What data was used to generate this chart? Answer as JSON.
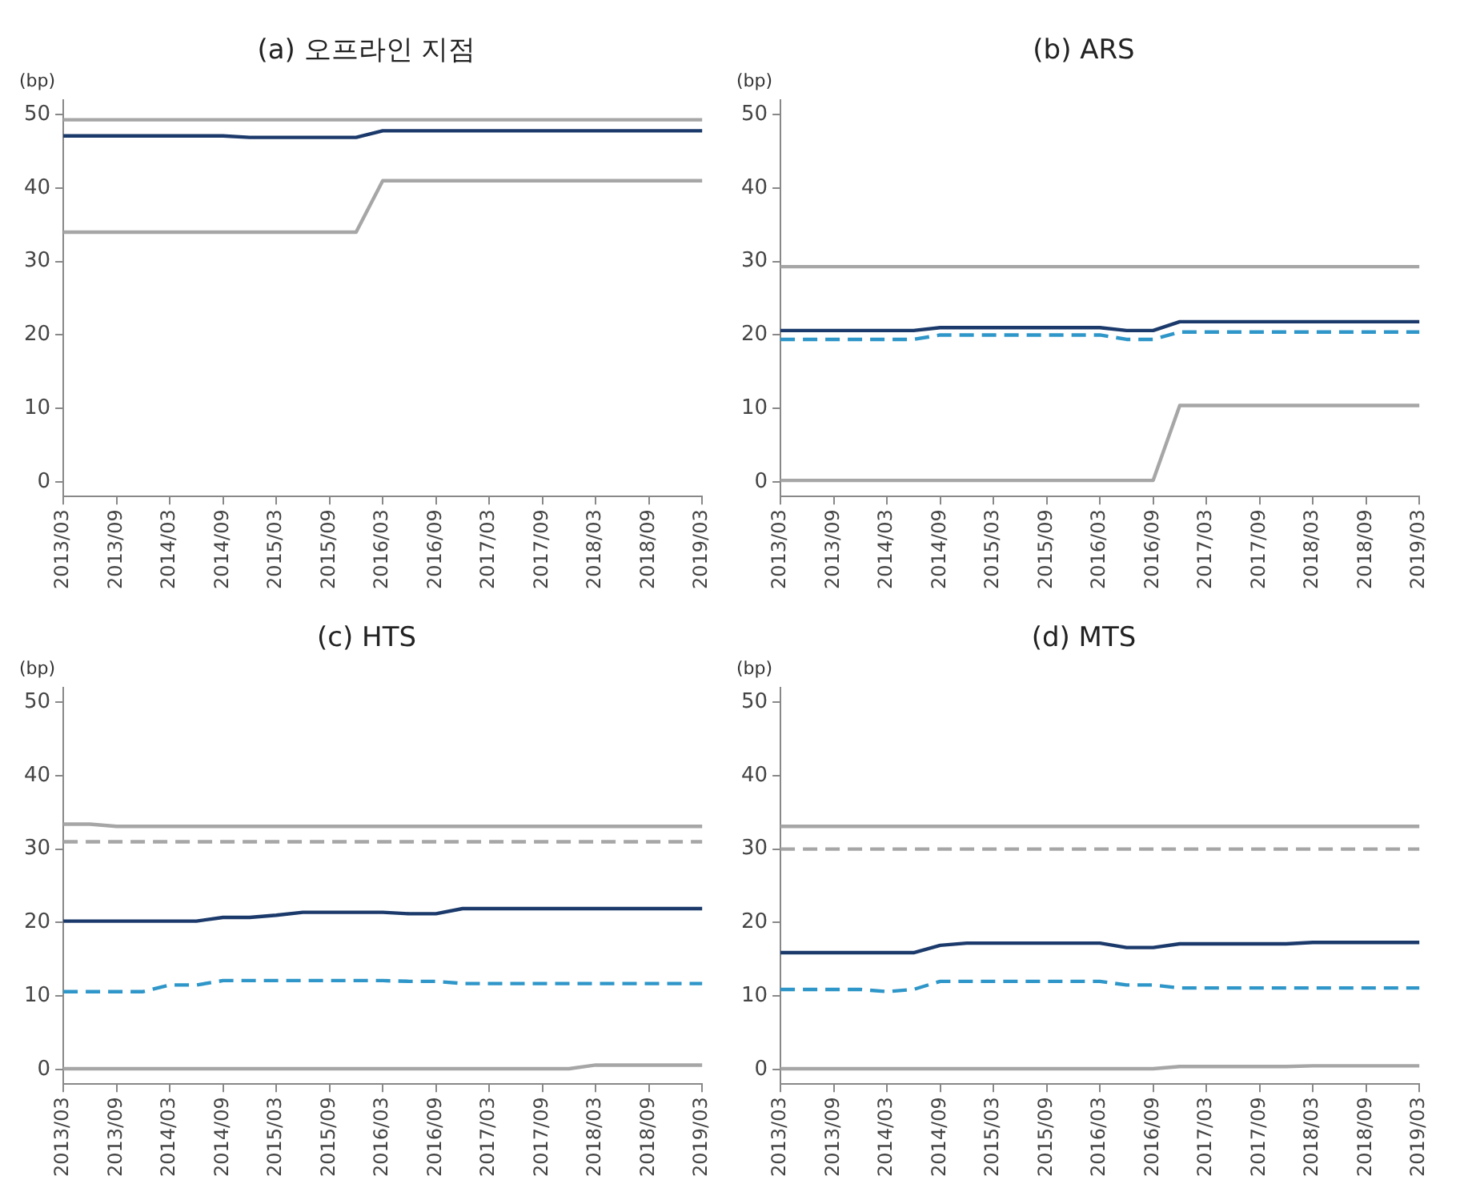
{
  "chart_data": [
    {
      "type": "line",
      "title": "(a) 오프라인 지점",
      "ylabel": "(bp)",
      "marker": "none",
      "grid": false,
      "legend": false,
      "ylim": [
        -2,
        52
      ],
      "yticks": [
        0,
        10,
        20,
        30,
        40,
        50
      ],
      "categories": [
        "2013/03",
        null,
        "2013/09",
        null,
        "2014/03",
        null,
        "2014/09",
        null,
        "2015/03",
        null,
        "2015/09",
        null,
        "2016/03",
        null,
        "2016/09",
        null,
        "2017/03",
        null,
        "2017/09",
        null,
        "2018/03",
        null,
        "2018/09",
        null,
        "2019/03"
      ],
      "series": [
        {
          "color": "#a6a6a6",
          "line_style": "solid",
          "values": [
            49.3,
            49.3,
            49.3,
            49.3,
            49.3,
            49.3,
            49.3,
            49.3,
            49.3,
            49.3,
            49.3,
            49.3,
            49.3,
            49.3,
            49.3,
            49.3,
            49.3,
            49.3,
            49.3,
            49.3,
            49.3,
            49.3,
            49.3,
            49.3,
            49.3
          ]
        },
        {
          "color": "#a6a6a6",
          "line_style": "solid",
          "values": [
            34.0,
            34.0,
            34.0,
            34.0,
            34.0,
            34.0,
            34.0,
            34.0,
            34.0,
            34.0,
            34.0,
            34.0,
            41.0,
            41.0,
            41.0,
            41.0,
            41.0,
            41.0,
            41.0,
            41.0,
            41.0,
            41.0,
            41.0,
            41.0,
            41.0
          ]
        },
        {
          "color": "#1b3a6b",
          "line_style": "solid",
          "values": [
            47.1,
            47.1,
            47.1,
            47.1,
            47.1,
            47.1,
            47.1,
            46.9,
            46.9,
            46.9,
            46.9,
            46.9,
            47.8,
            47.8,
            47.8,
            47.8,
            47.8,
            47.8,
            47.8,
            47.8,
            47.8,
            47.8,
            47.8,
            47.8,
            47.8
          ]
        }
      ]
    },
    {
      "type": "line",
      "title": "(b) ARS",
      "ylabel": "(bp)",
      "marker": "none",
      "grid": false,
      "legend": false,
      "ylim": [
        -2,
        52
      ],
      "yticks": [
        0,
        10,
        20,
        30,
        40,
        50
      ],
      "categories": [
        "2013/03",
        null,
        "2013/09",
        null,
        "2014/03",
        null,
        "2014/09",
        null,
        "2015/03",
        null,
        "2015/09",
        null,
        "2016/03",
        null,
        "2016/09",
        null,
        "2017/03",
        null,
        "2017/09",
        null,
        "2018/03",
        null,
        "2018/09",
        null,
        "2019/03"
      ],
      "series": [
        {
          "color": "#a6a6a6",
          "line_style": "solid",
          "values": [
            29.3,
            29.3,
            29.3,
            29.3,
            29.3,
            29.3,
            29.3,
            29.3,
            29.3,
            29.3,
            29.3,
            29.3,
            29.3,
            29.3,
            29.3,
            29.3,
            29.3,
            29.3,
            29.3,
            29.3,
            29.3,
            29.3,
            29.3,
            29.3,
            29.3
          ]
        },
        {
          "color": "#a6a6a6",
          "line_style": "solid",
          "values": [
            0.2,
            0.2,
            0.2,
            0.2,
            0.2,
            0.2,
            0.2,
            0.2,
            0.2,
            0.2,
            0.2,
            0.2,
            0.2,
            0.2,
            0.2,
            10.4,
            10.4,
            10.4,
            10.4,
            10.4,
            10.4,
            10.4,
            10.4,
            10.4,
            10.4
          ]
        },
        {
          "color": "#2e96c8",
          "line_style": "dashed",
          "values": [
            19.4,
            19.4,
            19.4,
            19.4,
            19.4,
            19.4,
            20.0,
            20.0,
            20.0,
            20.0,
            20.0,
            20.0,
            20.0,
            19.4,
            19.4,
            20.4,
            20.4,
            20.4,
            20.4,
            20.4,
            20.4,
            20.4,
            20.4,
            20.4,
            20.4
          ]
        },
        {
          "color": "#1b3a6b",
          "line_style": "solid",
          "values": [
            20.6,
            20.6,
            20.6,
            20.6,
            20.6,
            20.6,
            21.0,
            21.0,
            21.0,
            21.0,
            21.0,
            21.0,
            21.0,
            20.6,
            20.6,
            21.8,
            21.8,
            21.8,
            21.8,
            21.8,
            21.8,
            21.8,
            21.8,
            21.8,
            21.8
          ]
        }
      ]
    },
    {
      "type": "line",
      "title": "(c) HTS",
      "ylabel": "(bp)",
      "marker": "none",
      "grid": false,
      "legend": false,
      "ylim": [
        -2,
        52
      ],
      "yticks": [
        0,
        10,
        20,
        30,
        40,
        50
      ],
      "categories": [
        "2013/03",
        null,
        "2013/09",
        null,
        "2014/03",
        null,
        "2014/09",
        null,
        "2015/03",
        null,
        "2015/09",
        null,
        "2016/03",
        null,
        "2016/09",
        null,
        "2017/03",
        null,
        "2017/09",
        null,
        "2018/03",
        null,
        "2018/09",
        null,
        "2019/03"
      ],
      "series": [
        {
          "color": "#a6a6a6",
          "line_style": "solid",
          "values": [
            33.4,
            33.4,
            33.1,
            33.1,
            33.1,
            33.1,
            33.1,
            33.1,
            33.1,
            33.1,
            33.1,
            33.1,
            33.1,
            33.1,
            33.1,
            33.1,
            33.1,
            33.1,
            33.1,
            33.1,
            33.1,
            33.1,
            33.1,
            33.1,
            33.1
          ]
        },
        {
          "color": "#a6a6a6",
          "line_style": "dashed",
          "values": [
            31.0,
            31.0,
            31.0,
            31.0,
            31.0,
            31.0,
            31.0,
            31.0,
            31.0,
            31.0,
            31.0,
            31.0,
            31.0,
            31.0,
            31.0,
            31.0,
            31.0,
            31.0,
            31.0,
            31.0,
            31.0,
            31.0,
            31.0,
            31.0,
            31.0
          ]
        },
        {
          "color": "#a6a6a6",
          "line_style": "solid",
          "values": [
            0.1,
            0.1,
            0.1,
            0.1,
            0.1,
            0.1,
            0.1,
            0.1,
            0.1,
            0.1,
            0.1,
            0.1,
            0.1,
            0.1,
            0.1,
            0.1,
            0.1,
            0.1,
            0.1,
            0.1,
            0.6,
            0.6,
            0.6,
            0.6,
            0.6
          ]
        },
        {
          "color": "#2e96c8",
          "line_style": "dashed",
          "values": [
            10.6,
            10.6,
            10.6,
            10.6,
            11.5,
            11.5,
            12.1,
            12.1,
            12.1,
            12.1,
            12.1,
            12.1,
            12.1,
            12.0,
            12.0,
            11.7,
            11.7,
            11.7,
            11.7,
            11.7,
            11.7,
            11.7,
            11.7,
            11.7,
            11.7
          ]
        },
        {
          "color": "#1b3a6b",
          "line_style": "solid",
          "values": [
            20.2,
            20.2,
            20.2,
            20.2,
            20.2,
            20.2,
            20.7,
            20.7,
            21.0,
            21.4,
            21.4,
            21.4,
            21.4,
            21.2,
            21.2,
            21.9,
            21.9,
            21.9,
            21.9,
            21.9,
            21.9,
            21.9,
            21.9,
            21.9,
            21.9
          ]
        }
      ]
    },
    {
      "type": "line",
      "title": "(d) MTS",
      "ylabel": "(bp)",
      "marker": "none",
      "grid": false,
      "legend": false,
      "ylim": [
        -2,
        52
      ],
      "yticks": [
        0,
        10,
        20,
        30,
        40,
        50
      ],
      "categories": [
        "2013/03",
        null,
        "2013/09",
        null,
        "2014/03",
        null,
        "2014/09",
        null,
        "2015/03",
        null,
        "2015/09",
        null,
        "2016/03",
        null,
        "2016/09",
        null,
        "2017/03",
        null,
        "2017/09",
        null,
        "2018/03",
        null,
        "2018/09",
        null,
        "2019/03"
      ],
      "series": [
        {
          "color": "#a6a6a6",
          "line_style": "solid",
          "values": [
            33.1,
            33.1,
            33.1,
            33.1,
            33.1,
            33.1,
            33.1,
            33.1,
            33.1,
            33.1,
            33.1,
            33.1,
            33.1,
            33.1,
            33.1,
            33.1,
            33.1,
            33.1,
            33.1,
            33.1,
            33.1,
            33.1,
            33.1,
            33.1,
            33.1
          ]
        },
        {
          "color": "#a6a6a6",
          "line_style": "dashed",
          "values": [
            30.0,
            30.0,
            30.0,
            30.0,
            30.0,
            30.0,
            30.0,
            30.0,
            30.0,
            30.0,
            30.0,
            30.0,
            30.0,
            30.0,
            30.0,
            30.0,
            30.0,
            30.0,
            30.0,
            30.0,
            30.0,
            30.0,
            30.0,
            30.0,
            30.0
          ]
        },
        {
          "color": "#a6a6a6",
          "line_style": "solid",
          "values": [
            0.1,
            0.1,
            0.1,
            0.1,
            0.1,
            0.1,
            0.1,
            0.1,
            0.1,
            0.1,
            0.1,
            0.1,
            0.1,
            0.1,
            0.1,
            0.4,
            0.4,
            0.4,
            0.4,
            0.4,
            0.5,
            0.5,
            0.5,
            0.5,
            0.5
          ]
        },
        {
          "color": "#2e96c8",
          "line_style": "dashed",
          "values": [
            10.9,
            10.9,
            10.9,
            10.9,
            10.6,
            10.9,
            12.0,
            12.0,
            12.0,
            12.0,
            12.0,
            12.0,
            12.0,
            11.5,
            11.5,
            11.1,
            11.1,
            11.1,
            11.1,
            11.1,
            11.1,
            11.1,
            11.1,
            11.1,
            11.1
          ]
        },
        {
          "color": "#1b3a6b",
          "line_style": "solid",
          "values": [
            15.9,
            15.9,
            15.9,
            15.9,
            15.9,
            15.9,
            16.9,
            17.2,
            17.2,
            17.2,
            17.2,
            17.2,
            17.2,
            16.6,
            16.6,
            17.1,
            17.1,
            17.1,
            17.1,
            17.1,
            17.3,
            17.3,
            17.3,
            17.3,
            17.3
          ]
        }
      ]
    }
  ]
}
